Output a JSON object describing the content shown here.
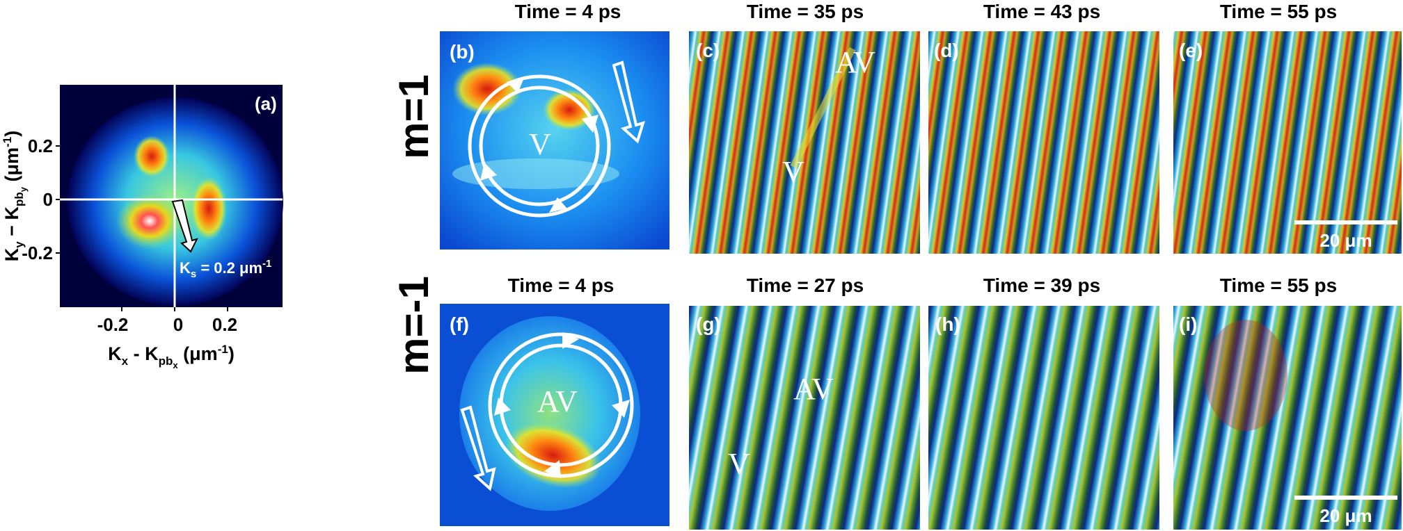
{
  "figure": {
    "panel_a": {
      "label": "(a)",
      "xlabel_main": "K",
      "xlabel_sub1": "x",
      "xlabel_mid": " - K",
      "xlabel_sub2": "pb",
      "xlabel_sub3": "x",
      "xlabel_unit_open": " (μm",
      "xlabel_exp": "-1",
      "xlabel_unit_close": ")",
      "ylabel_main": "K",
      "ylabel_sub1": "y",
      "ylabel_mid": " − K",
      "ylabel_sub2": "pb",
      "ylabel_sub3": "y",
      "ylabel_unit_open": " (μm",
      "ylabel_exp": "-1",
      "ylabel_unit_close": ")",
      "xticks": [
        "-0.2",
        "0",
        "0.2"
      ],
      "yticks": [
        "0.2",
        "0",
        "-0.2"
      ],
      "ks_main": "K",
      "ks_sub": "s",
      "ks_value": " = 0.2 μm",
      "ks_exp": "-1"
    },
    "row_labels": [
      "m=1",
      "m=-1"
    ],
    "panels": [
      {
        "label": "(b)",
        "time": "Time = 4 ps",
        "marks": [
          "V"
        ]
      },
      {
        "label": "(c)",
        "time": "Time = 35 ps",
        "marks": [
          "AV",
          "V"
        ]
      },
      {
        "label": "(d)",
        "time": "Time = 43 ps",
        "marks": []
      },
      {
        "label": "(e)",
        "time": "Time = 55 ps",
        "marks": [],
        "scalebar": "20 μm"
      },
      {
        "label": "(f)",
        "time": "Time = 4 ps",
        "marks": [
          "AV"
        ]
      },
      {
        "label": "(g)",
        "time": "Time = 27 ps",
        "marks": [
          "AV",
          "V"
        ]
      },
      {
        "label": "(h)",
        "time": "Time = 39 ps",
        "marks": []
      },
      {
        "label": "(i)",
        "time": "Time = 55 ps",
        "marks": [],
        "scalebar": "20 μm"
      }
    ],
    "colors": {
      "jet_dark": "#00008f",
      "jet_blue": "#0a6cf0",
      "jet_cyan": "#33d6e6",
      "jet_green": "#7fe68a",
      "jet_yellow": "#f0e020",
      "jet_red": "#d41a10",
      "fringe_base": "#38602a"
    }
  }
}
